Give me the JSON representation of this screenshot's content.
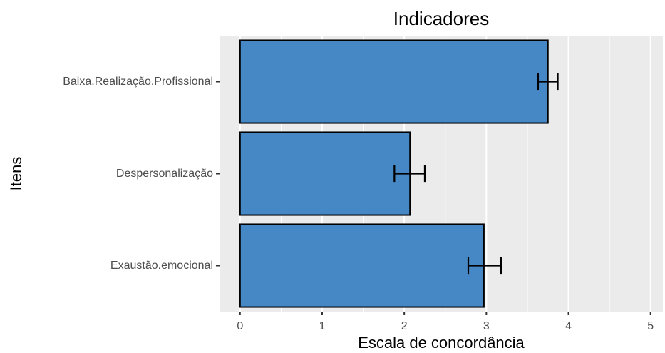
{
  "chart_data": {
    "type": "bar",
    "orientation": "horizontal",
    "title": "Indicadores",
    "xlabel": "Escala de concordância",
    "ylabel": "Itens",
    "categories": [
      "Baixa.Realização.Profissional",
      "Despersonalização",
      "Exaustão.emocional"
    ],
    "values": [
      3.75,
      2.07,
      2.97
    ],
    "error_low": [
      3.63,
      1.88,
      2.78
    ],
    "error_high": [
      3.87,
      2.25,
      3.18
    ],
    "xlim": [
      -0.25,
      5.15
    ],
    "xticks": [
      0,
      1,
      2,
      3,
      4,
      5
    ],
    "xtick_labels": [
      "0",
      "1",
      "2",
      "3",
      "4",
      "5"
    ],
    "grid": true,
    "colors": {
      "bar_fill": "#4687C6",
      "bar_stroke": "#000000",
      "panel_bg": "#EBEBEB",
      "grid": "#FFFFFF"
    }
  }
}
